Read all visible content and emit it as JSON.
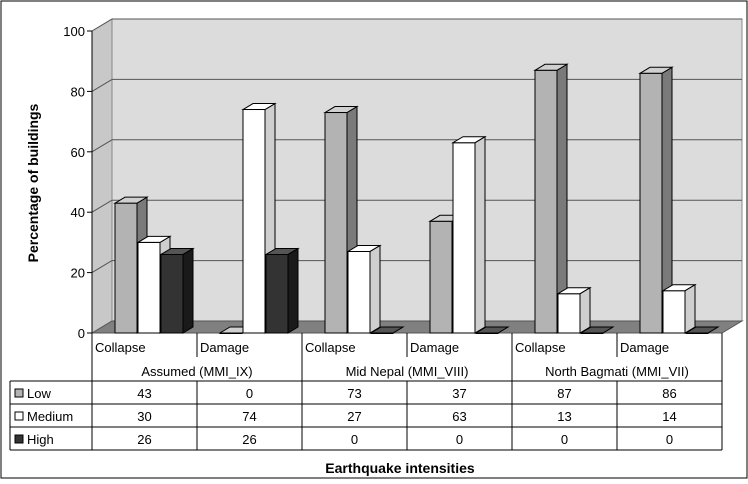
{
  "chart_data": {
    "type": "bar",
    "xlabel": "Earthquake intensities",
    "ylabel": "Percentage of buildings",
    "ylim": [
      0,
      100
    ],
    "yticks": [
      0,
      20,
      40,
      60,
      80,
      100
    ],
    "grid": true,
    "legend": "table-left",
    "groups": [
      {
        "label": "Assumed (MMI_IX)",
        "categories": [
          "Collapse",
          "Damage"
        ]
      },
      {
        "label": "Mid Nepal (MMI_VIII)",
        "categories": [
          "Collapse",
          "Damage"
        ]
      },
      {
        "label": "North Bagmati  (MMI_VII)",
        "categories": [
          "Collapse",
          "Damage"
        ]
      }
    ],
    "categories": [
      "Collapse",
      "Damage",
      "Collapse",
      "Damage",
      "Collapse",
      "Damage"
    ],
    "series": [
      {
        "name": "Low",
        "color": "#b3b3b3",
        "values": [
          43,
          0,
          73,
          37,
          87,
          86
        ]
      },
      {
        "name": "Medium",
        "color": "#ffffff",
        "values": [
          30,
          74,
          27,
          63,
          13,
          14
        ]
      },
      {
        "name": "High",
        "color": "#333333",
        "values": [
          26,
          26,
          0,
          0,
          0,
          0
        ]
      }
    ]
  }
}
